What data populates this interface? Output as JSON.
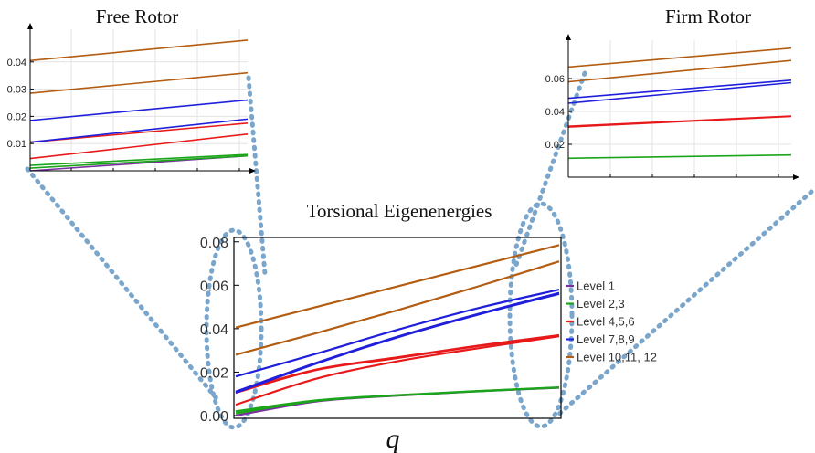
{
  "chart_data": [
    {
      "type": "line",
      "title": "Torsional Eigenenergies",
      "xlabel": "q",
      "ylabel": "",
      "ylim": [
        0,
        0.082
      ],
      "yticks": [
        "0.00",
        "0.02",
        "0.04",
        "0.06",
        "0.08"
      ],
      "grid": false,
      "legend_position": "right",
      "x": [
        0,
        0.25,
        0.5,
        0.75,
        1
      ],
      "series": [
        {
          "name": "Level 1",
          "color": "#7b2fa0",
          "values": [
            0,
            0.0065,
            0.0092,
            0.0112,
            0.0128
          ]
        },
        {
          "name": "Level 2,3",
          "color": "#1aa51a",
          "values": [
            0.001,
            0.0068,
            0.0093,
            0.0112,
            0.0129
          ]
        },
        {
          "name": "",
          "color": "#1aa51a",
          "values": [
            0.002,
            0.007,
            0.0094,
            0.0113,
            0.013
          ]
        },
        {
          "name": "Level 4,5,6",
          "color": "#e8191a",
          "values": [
            0.005,
            0.017,
            0.025,
            0.031,
            0.0365
          ]
        },
        {
          "name": "",
          "color": "#e8191a",
          "values": [
            0.0105,
            0.021,
            0.0265,
            0.032,
            0.0368
          ]
        },
        {
          "name": "",
          "color": "#e8191a",
          "values": [
            0.011,
            0.0212,
            0.0268,
            0.0322,
            0.037
          ]
        },
        {
          "name": "Level 7,8,9",
          "color": "#1f1fdc",
          "values": [
            0.0105,
            0.024,
            0.036,
            0.0465,
            0.056
          ]
        },
        {
          "name": "",
          "color": "#1f1fdc",
          "values": [
            0.011,
            0.0243,
            0.0363,
            0.0468,
            0.0565
          ]
        },
        {
          "name": "",
          "color": "#1f1fdc",
          "values": [
            0.018,
            0.0285,
            0.0395,
            0.0495,
            0.058
          ]
        },
        {
          "name": "Level 10,11, 12",
          "color": "#b35d12",
          "values": [
            0.028,
            0.038,
            0.0485,
            0.0595,
            0.071
          ]
        },
        {
          "name": "",
          "color": "#b35d12",
          "values": [
            0.0405,
            0.05,
            0.0595,
            0.069,
            0.0785
          ]
        }
      ]
    },
    {
      "type": "line",
      "title": "Free Rotor",
      "ylim": [
        0,
        0.05
      ],
      "yticks": [
        "0.01",
        "0.02",
        "0.03",
        "0.04"
      ],
      "grid": true,
      "x": [
        0,
        1
      ],
      "series": [
        {
          "name": "",
          "color": "#7b2fa0",
          "values": [
            0,
            0.0055
          ]
        },
        {
          "name": "",
          "color": "#1aa51a",
          "values": [
            0.001,
            0.0055
          ]
        },
        {
          "name": "",
          "color": "#1aa51a",
          "values": [
            0.002,
            0.006
          ]
        },
        {
          "name": "",
          "color": "#e8191a",
          "values": [
            0.0045,
            0.0135
          ]
        },
        {
          "name": "",
          "color": "#e8191a",
          "values": [
            0.0105,
            0.0175
          ]
        },
        {
          "name": "",
          "color": "#1f1fdc",
          "values": [
            0.0105,
            0.019
          ]
        },
        {
          "name": "",
          "color": "#1f1fdc",
          "values": [
            0.0185,
            0.026
          ]
        },
        {
          "name": "",
          "color": "#b35d12",
          "values": [
            0.0285,
            0.036
          ]
        },
        {
          "name": "",
          "color": "#b35d12",
          "values": [
            0.0405,
            0.048
          ]
        }
      ]
    },
    {
      "type": "line",
      "title": "Firm Rotor",
      "ylim": [
        0,
        0.08
      ],
      "yticks": [
        "0.02",
        "0.04",
        "0.06"
      ],
      "grid": true,
      "x": [
        0,
        1
      ],
      "series": [
        {
          "name": "",
          "color": "#1aa51a",
          "values": [
            0.0115,
            0.0135
          ]
        },
        {
          "name": "",
          "color": "#e8191a",
          "values": [
            0.0305,
            0.037
          ]
        },
        {
          "name": "",
          "color": "#e8191a",
          "values": [
            0.031,
            0.0372
          ]
        },
        {
          "name": "",
          "color": "#1f1fdc",
          "values": [
            0.045,
            0.0575
          ]
        },
        {
          "name": "",
          "color": "#1f1fdc",
          "values": [
            0.048,
            0.059
          ]
        },
        {
          "name": "",
          "color": "#b35d12",
          "values": [
            0.058,
            0.071
          ]
        },
        {
          "name": "",
          "color": "#b35d12",
          "values": [
            0.067,
            0.0785
          ]
        }
      ]
    }
  ]
}
